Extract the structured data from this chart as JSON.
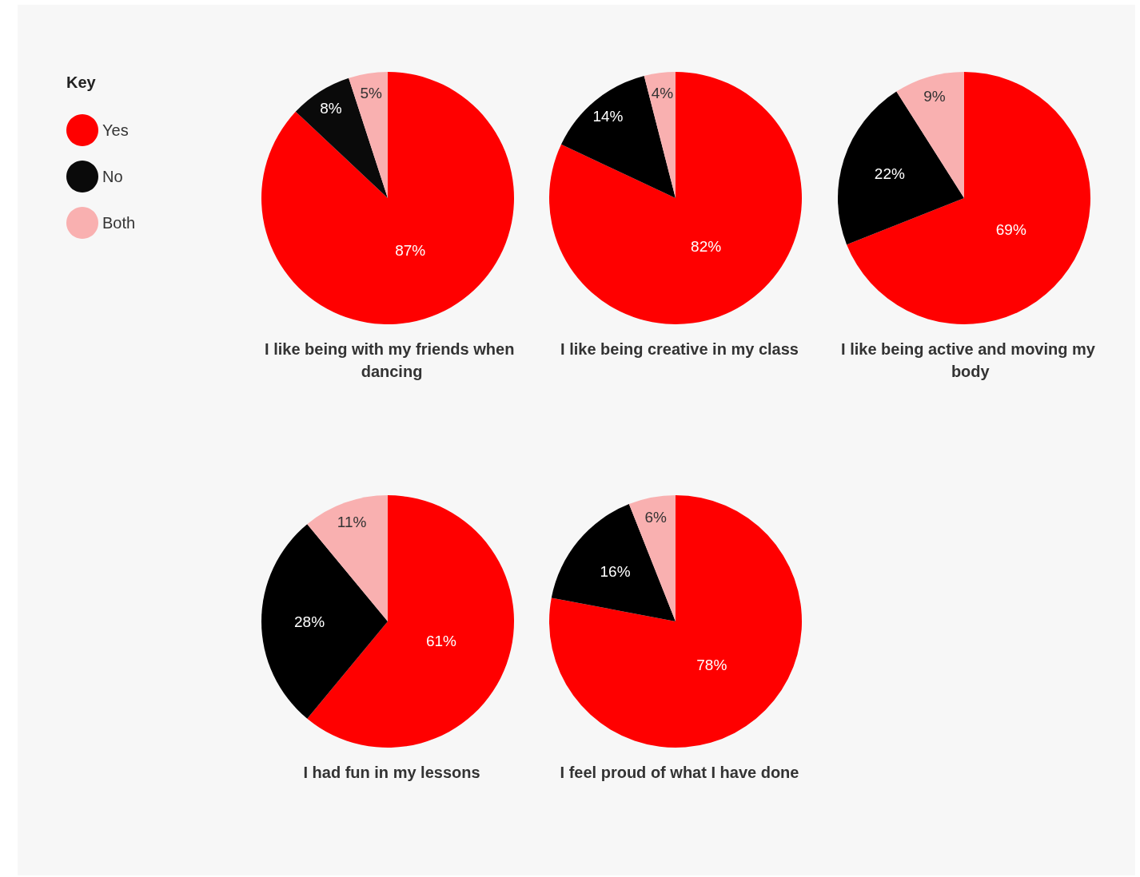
{
  "chart_data": [
    {
      "type": "pie",
      "title": "I like being with my friends when dancing",
      "categories": [
        "Yes",
        "No",
        "Both"
      ],
      "values": [
        87,
        8,
        5
      ],
      "value_labels": [
        "87%",
        "8%",
        "5%"
      ],
      "colors": [
        "#ff0000",
        "#0a0a0a",
        "#f9b0b0"
      ],
      "legend": "left",
      "legend_title": "Key"
    },
    {
      "type": "pie",
      "title": "I like being creative in my class",
      "values": [
        82,
        14,
        4
      ],
      "value_labels": [
        "82%",
        "14%",
        "4%"
      ],
      "colors": [
        "#ff0000",
        "#000000",
        "#f9b0b0"
      ]
    },
    {
      "type": "pie",
      "title": "I like being active and moving my body",
      "values": [
        69,
        22,
        9
      ],
      "value_labels": [
        "69%",
        "22%",
        "9%"
      ],
      "colors": [
        "#ff0000",
        "#000000",
        "#f9b0b0"
      ]
    },
    {
      "type": "pie",
      "title": "I had fun in my lessons",
      "values": [
        61,
        28,
        11
      ],
      "value_labels": [
        "61%",
        "28%",
        "11%"
      ],
      "colors": [
        "#ff0000",
        "#000000",
        "#f9b0b0"
      ]
    },
    {
      "type": "pie",
      "title": "I feel proud of what I have done",
      "values": [
        78,
        16,
        6
      ],
      "value_labels": [
        "78%",
        "16%",
        "6%"
      ],
      "colors": [
        "#ff0000",
        "#000000",
        "#f9b0b0"
      ]
    }
  ]
}
